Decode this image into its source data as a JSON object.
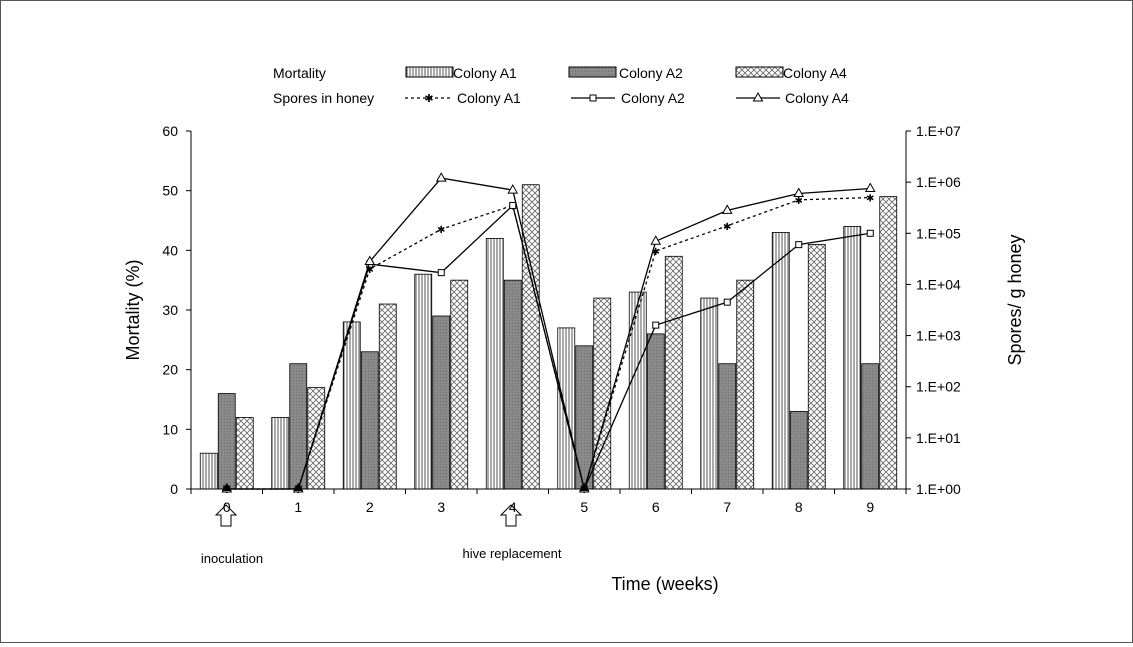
{
  "chart_data": {
    "type": "bar",
    "x_label": "Time (weeks)",
    "categories": [
      "0",
      "1",
      "2",
      "3",
      "4",
      "5",
      "6",
      "7",
      "8",
      "9"
    ],
    "left_axis": {
      "label": "Mortality (%)",
      "ylim": [
        0,
        60
      ],
      "ticks": [
        "0",
        "10",
        "20",
        "30",
        "40",
        "50",
        "60"
      ]
    },
    "right_axis": {
      "label": "Spores/ g honey",
      "scale": "log",
      "ylim": [
        1,
        10000000
      ],
      "ticks": [
        "1.E+00",
        "1.E+01",
        "1.E+02",
        "1.E+03",
        "1.E+04",
        "1.E+05",
        "1.E+06",
        "1.E+07"
      ]
    },
    "legend": {
      "mortality_label": "Mortality",
      "spores_label": "Spores in honey",
      "bar_names": [
        "Colony A1",
        "Colony A2",
        "Colony A4"
      ],
      "line_names": [
        "Colony A1",
        "Colony A2",
        "Colony A4"
      ]
    },
    "bar_series": [
      {
        "name": "Colony A1",
        "pattern": "vertical-hatch",
        "values": [
          6,
          12,
          28,
          36,
          42,
          27,
          33,
          32,
          43,
          44
        ]
      },
      {
        "name": "Colony A2",
        "pattern": "gray-fill",
        "values": [
          16,
          21,
          23,
          29,
          35,
          24,
          26,
          21,
          13,
          21
        ]
      },
      {
        "name": "Colony A4",
        "pattern": "crosshatch",
        "values": [
          12,
          17,
          31,
          35,
          51,
          32,
          39,
          35,
          41,
          49
        ]
      }
    ],
    "line_series": [
      {
        "name": "Colony A1",
        "style": "dashed",
        "marker": "star",
        "values": [
          1,
          1,
          20000,
          120000,
          350000,
          1,
          45000,
          140000,
          450000,
          500000
        ]
      },
      {
        "name": "Colony A2",
        "style": "solid",
        "marker": "square",
        "values": [
          1,
          1,
          25000,
          17000,
          350000,
          1,
          1600,
          4500,
          60000,
          100000
        ]
      },
      {
        "name": "Colony A4",
        "style": "solid",
        "marker": "triangle",
        "values": [
          1,
          1,
          28000,
          1200000,
          700000,
          1,
          70000,
          280000,
          600000,
          750000
        ]
      }
    ],
    "annotations": [
      {
        "text": "inoculation",
        "category": "0"
      },
      {
        "text": "hive replacement",
        "category": "4"
      }
    ]
  }
}
